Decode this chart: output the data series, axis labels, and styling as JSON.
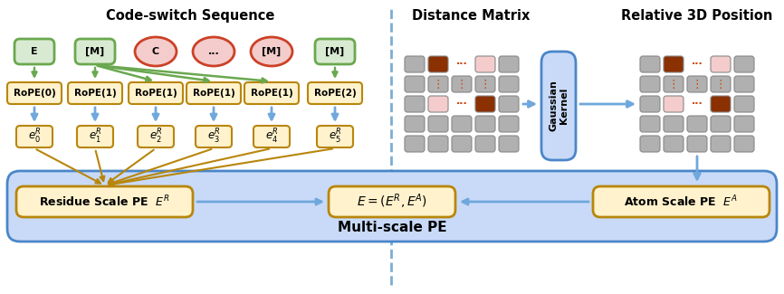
{
  "title_left": "Code-switch Sequence",
  "title_right1": "Distance Matrix",
  "title_right2": "Relative 3D Position",
  "gaussian_label": "Gaussian\nKernel",
  "multiscale_label": "Multi-scale PE",
  "residue_label": "Residue Scale PE  $E^R$",
  "atom_label": "Atom Scale PE  $E^A$",
  "combine_label": "$E=(E^R,E^A)$",
  "nodes_top": [
    "E",
    "[M]",
    "C",
    "...",
    "[M]",
    "[M]"
  ],
  "nodes_type": [
    "green",
    "green",
    "orange",
    "orange",
    "orange",
    "green"
  ],
  "rope_labels": [
    "RoPE(0)",
    "RoPE(1)",
    "RoPE(1)",
    "RoPE(1)",
    "RoPE(1)",
    "RoPE(2)"
  ],
  "embed_labels": [
    "$e_0^R$",
    "$e_1^R$",
    "$e_2^R$",
    "$e_3^R$",
    "$e_4^R$",
    "$e_5^R$"
  ],
  "bg_color": "#ffffff",
  "green_fill": "#d9ead3",
  "green_edge": "#6aa84f",
  "orange_fill": "#f4cccc",
  "orange_edge": "#cc4125",
  "rope_fill": "#fff2cc",
  "rope_edge": "#b8860b",
  "embed_fill": "#fff2cc",
  "embed_edge": "#b8860b",
  "blue_fill": "#c9daf8",
  "blue_edge": "#4a86c8",
  "arrow_green": "#6aa84f",
  "arrow_blue": "#6fa8dc",
  "arrow_gold": "#b8860b",
  "grid_gray": "#b0b0b0",
  "grid_gray_edge": "#888888",
  "grid_light": "#f4cccc",
  "grid_dark": "#8b3000",
  "divider_color": "#7bafd4"
}
